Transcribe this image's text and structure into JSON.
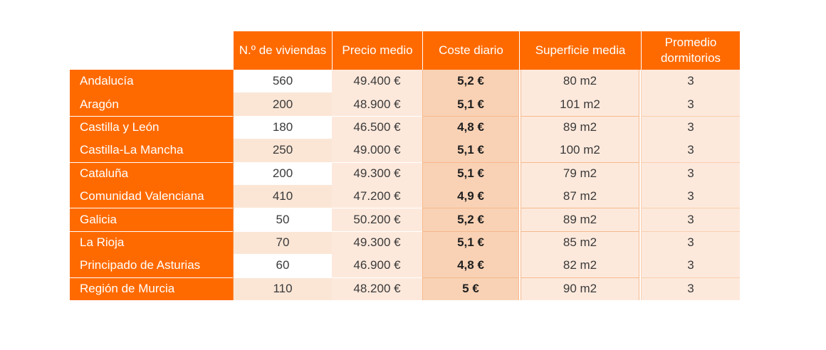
{
  "table": {
    "headers": [
      "",
      "N.º de viviendas",
      "Precio medio",
      "Coste diario",
      "Superficie media",
      "Promedio dormitorios"
    ],
    "rows": [
      [
        "Andalucía",
        "560",
        "49.400 €",
        "5,2 €",
        "80 m2",
        "3"
      ],
      [
        "Aragón",
        "200",
        "48.900 €",
        "5,1 €",
        "101 m2",
        "3"
      ],
      [
        "Castilla y León",
        "180",
        "46.500 €",
        "4,8 €",
        "89 m2",
        "3"
      ],
      [
        "Castilla-La Mancha",
        "250",
        "49.000 €",
        "5,1 €",
        "100 m2",
        "3"
      ],
      [
        "Cataluña",
        "200",
        "49.300 €",
        "5,1 €",
        "79 m2",
        "3"
      ],
      [
        "Comunidad Valenciana",
        "410",
        "47.200 €",
        "4,9 €",
        "87 m2",
        "3"
      ],
      [
        "Galicia",
        "50",
        "50.200 €",
        "5,2 €",
        "89 m2",
        "3"
      ],
      [
        "La Rioja",
        "70",
        "49.300 €",
        "5,1 €",
        "85 m2",
        "3"
      ],
      [
        "Principado de Asturias",
        "60",
        "46.900 €",
        "4,8 €",
        "82 m2",
        "3"
      ],
      [
        "Región de Murcia",
        "110",
        "48.200 €",
        "5 €",
        "90 m2",
        "3"
      ]
    ]
  },
  "colors": {
    "header_bg": "#ff6a00",
    "light_fill": "#fde9dc",
    "cost_fill": "#f9d2b5"
  }
}
